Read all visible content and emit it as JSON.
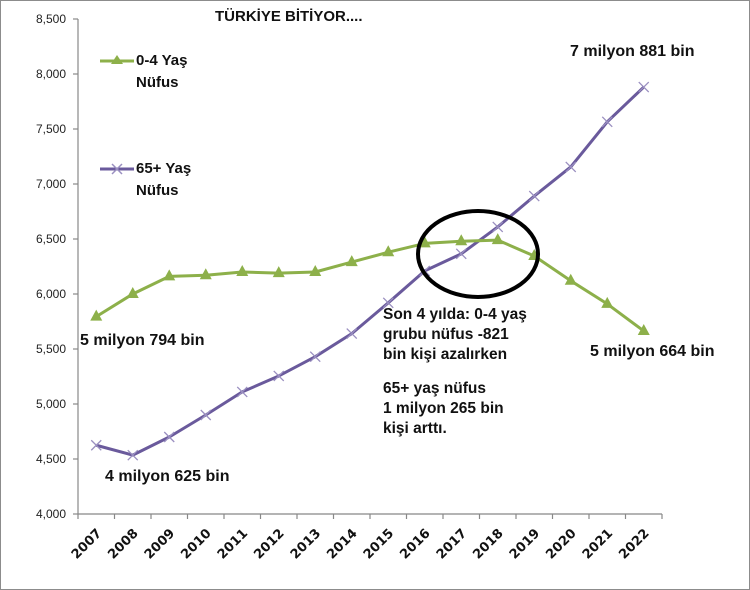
{
  "chart_data": {
    "type": "line",
    "title": "TÜRKİYE BİTİYOR....",
    "xlabel": "",
    "ylabel": "",
    "ylim": [
      4000,
      8500
    ],
    "yticks": [
      "4,000",
      "4,500",
      "5,000",
      "5,500",
      "6,000",
      "6,500",
      "7,000",
      "7,500",
      "8,000",
      "8,500"
    ],
    "categories": [
      "2007",
      "2008",
      "2009",
      "2010",
      "2011",
      "2012",
      "2013",
      "2014",
      "2015",
      "2016",
      "2017",
      "2018",
      "2019",
      "2020",
      "2021",
      "2022"
    ],
    "grid": false,
    "legend_position": "upper-left-inside",
    "series": [
      {
        "name": "0-4 Yaş Nüfus",
        "color": "#8db04a",
        "marker": "triangle",
        "values": [
          5794,
          6000,
          6160,
          6170,
          6200,
          6190,
          6200,
          6290,
          6380,
          6460,
          6480,
          6490,
          6345,
          6120,
          5910,
          5664
        ]
      },
      {
        "name": "65+ Yaş Nüfus",
        "color": "#6a5a9c",
        "marker": "x",
        "values": [
          4625,
          4535,
          4700,
          4900,
          5110,
          5255,
          5430,
          5640,
          5920,
          6210,
          6365,
          6610,
          6890,
          7155,
          7565,
          7881
        ]
      }
    ],
    "annotations": [
      "5 milyon 794 bin",
      "4 milyon 625 bin",
      "7 milyon 881 bin",
      "5 milyon 664 bin",
      "Son 4 yılda: 0-4 yaş grubu nüfus -821 bin kişi azalırken",
      "65+ yaş nüfus 1 milyon 265 bin kişi arttı."
    ],
    "highlight": "ellipse around 2017-2018 crossover"
  },
  "title": "TÜRKİYE BİTİYOR....",
  "legend": {
    "green_line1": "0-4 Yaş",
    "green_line2": "Nüfus",
    "purple_line1": "65+ Yaş",
    "purple_line2": "Nüfus"
  },
  "annotations": {
    "green_start": "5 milyon 794 bin",
    "purple_start": "4 milyon 625 bin",
    "purple_end": "7 milyon 881 bin",
    "green_end": "5 milyon 664 bin"
  },
  "note": {
    "line1": "Son 4 yılda: 0-4 yaş",
    "line2": "grubu nüfus -821",
    "line3": "bin kişi azalırken",
    "line4": "65+ yaş nüfus",
    "line5": "1 milyon 265 bin",
    "line6": "kişi arttı."
  }
}
